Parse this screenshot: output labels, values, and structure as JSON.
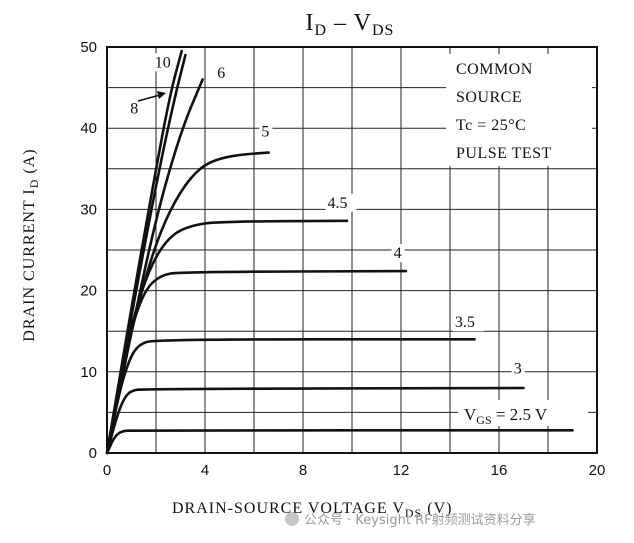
{
  "chart_data": {
    "type": "line",
    "title": "ID – VDS",
    "title_parts": {
      "main": "I",
      "sub": "D",
      "sep": " – V",
      "sub2": "DS"
    },
    "xlabel": "DRAIN-SOURCE VOLTAGE VDS (V)",
    "xlabel_parts": {
      "pre": "DRAIN-SOURCE VOLTAGE  V",
      "sub": "DS",
      "post": "  (V)"
    },
    "ylabel": "DRAIN CURRENT ID (A)",
    "ylabel_parts": {
      "pre": "DRAIN CURRENT  I",
      "sub": "D",
      "post": "  (A)"
    },
    "xlim": [
      0,
      20
    ],
    "ylim": [
      0,
      50
    ],
    "x_ticks": [
      0,
      4,
      8,
      12,
      16,
      20
    ],
    "y_ticks": [
      0,
      10,
      20,
      30,
      40,
      50
    ],
    "grid": true,
    "legend_position": "top-right",
    "conditions": [
      "COMMON",
      "SOURCE",
      "Tc = 25°C",
      "PULSE TEST"
    ],
    "vgs_label": {
      "pre": "V",
      "sub": "GS",
      "post": " = 2.5 V"
    },
    "series": [
      {
        "name": "2.5",
        "label": "",
        "x": [
          0,
          0.3,
          0.6,
          1.0,
          19
        ],
        "y": [
          0,
          2.0,
          2.7,
          2.8,
          2.8
        ]
      },
      {
        "name": "3",
        "label": "3",
        "x": [
          0,
          0.4,
          0.7,
          1.0,
          1.5,
          17
        ],
        "y": [
          0,
          4.5,
          6.8,
          7.7,
          7.9,
          8.0
        ]
      },
      {
        "name": "3.5",
        "label": "3.5",
        "x": [
          0,
          0.5,
          0.9,
          1.3,
          2.0,
          15
        ],
        "y": [
          0,
          7.5,
          11.5,
          13.4,
          14.0,
          14.0
        ]
      },
      {
        "name": "4",
        "label": "4",
        "x": [
          0,
          0.6,
          1.1,
          1.6,
          2.2,
          3.0,
          12.2
        ],
        "y": [
          0,
          10.5,
          16.5,
          20.3,
          21.9,
          22.3,
          22.4
        ]
      },
      {
        "name": "4.5",
        "label": "4.5",
        "x": [
          0,
          0.7,
          1.3,
          1.9,
          2.6,
          3.4,
          4.5,
          9.8
        ],
        "y": [
          0,
          12,
          19,
          23.8,
          26.8,
          28.0,
          28.5,
          28.6
        ]
      },
      {
        "name": "5",
        "label": "5",
        "x": [
          0,
          0.8,
          1.5,
          2.2,
          3.0,
          3.8,
          4.6,
          5.6,
          6.6
        ],
        "y": [
          0,
          12.5,
          21,
          27.5,
          32.3,
          35.2,
          36.3,
          36.8,
          37.0
        ]
      },
      {
        "name": "6",
        "label": "6",
        "x": [
          0,
          1.0,
          2.0,
          3.0,
          3.9
        ],
        "y": [
          0,
          15,
          29,
          39.5,
          46
        ]
      },
      {
        "name": "8",
        "label": "8",
        "x": [
          0,
          1.0,
          2.0,
          2.7,
          3.2
        ],
        "y": [
          0,
          17,
          33,
          43,
          49
        ]
      },
      {
        "name": "10",
        "label": "10",
        "x": [
          0,
          1.0,
          2.0,
          2.6,
          3.05
        ],
        "y": [
          0,
          18,
          35,
          44.5,
          49.5
        ]
      }
    ],
    "curve_labels": [
      {
        "text": "10",
        "x": 1.95,
        "y": 47.5
      },
      {
        "text": "8",
        "x": 0.95,
        "y": 41.8
      },
      {
        "text": "6",
        "x": 4.5,
        "y": 46.2
      },
      {
        "text": "5",
        "x": 6.3,
        "y": 39.0
      },
      {
        "text": "4.5",
        "x": 9.0,
        "y": 30.2
      },
      {
        "text": "4",
        "x": 11.7,
        "y": 24.0
      },
      {
        "text": "3.5",
        "x": 14.2,
        "y": 15.5
      },
      {
        "text": "3",
        "x": 16.6,
        "y": 9.8
      }
    ]
  },
  "watermark": "公众号 · Keysight RF射频测试资料分享"
}
